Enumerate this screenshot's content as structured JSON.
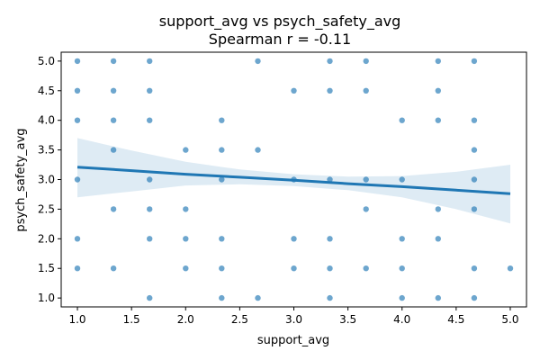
{
  "chart_data": {
    "type": "scatter",
    "title_line1": "support_avg vs psych_safety_avg",
    "title_line2": "Spearman r = -0.11",
    "xlabel": "support_avg",
    "ylabel": "psych_safety_avg",
    "xlim": [
      0.85,
      5.15
    ],
    "ylim": [
      0.85,
      5.15
    ],
    "xticks": [
      "1.0",
      "1.5",
      "2.0",
      "2.5",
      "3.0",
      "3.5",
      "4.0",
      "4.5",
      "5.0"
    ],
    "yticks": [
      "1.0",
      "1.5",
      "2.0",
      "2.5",
      "3.0",
      "3.5",
      "4.0",
      "4.5",
      "5.0"
    ],
    "point_color": "#1f77b4",
    "points": [
      [
        1.0,
        5.0
      ],
      [
        1.0,
        4.5
      ],
      [
        1.0,
        4.0
      ],
      [
        1.0,
        3.0
      ],
      [
        1.0,
        2.0
      ],
      [
        1.0,
        1.5
      ],
      [
        1.333,
        5.0
      ],
      [
        1.333,
        4.5
      ],
      [
        1.333,
        4.0
      ],
      [
        1.333,
        3.5
      ],
      [
        1.333,
        2.5
      ],
      [
        1.333,
        1.5
      ],
      [
        1.667,
        5.0
      ],
      [
        1.667,
        4.5
      ],
      [
        1.667,
        4.0
      ],
      [
        1.667,
        3.0
      ],
      [
        1.667,
        2.5
      ],
      [
        1.667,
        2.0
      ],
      [
        1.667,
        1.0
      ],
      [
        2.0,
        3.5
      ],
      [
        2.0,
        2.5
      ],
      [
        2.0,
        2.0
      ],
      [
        2.0,
        1.5
      ],
      [
        2.333,
        4.0
      ],
      [
        2.333,
        3.5
      ],
      [
        2.333,
        3.0
      ],
      [
        2.333,
        2.0
      ],
      [
        2.333,
        1.5
      ],
      [
        2.333,
        1.0
      ],
      [
        2.667,
        5.0
      ],
      [
        2.667,
        3.5
      ],
      [
        2.667,
        1.0
      ],
      [
        3.0,
        4.5
      ],
      [
        3.0,
        3.0
      ],
      [
        3.0,
        2.0
      ],
      [
        3.0,
        1.5
      ],
      [
        3.333,
        5.0
      ],
      [
        3.333,
        4.5
      ],
      [
        3.333,
        3.0
      ],
      [
        3.333,
        2.0
      ],
      [
        3.333,
        1.5
      ],
      [
        3.333,
        1.0
      ],
      [
        3.667,
        5.0
      ],
      [
        3.667,
        4.5
      ],
      [
        3.667,
        3.0
      ],
      [
        3.667,
        2.5
      ],
      [
        3.667,
        1.5
      ],
      [
        4.0,
        4.0
      ],
      [
        4.0,
        3.0
      ],
      [
        4.0,
        2.0
      ],
      [
        4.0,
        1.5
      ],
      [
        4.0,
        1.0
      ],
      [
        4.333,
        5.0
      ],
      [
        4.333,
        4.5
      ],
      [
        4.333,
        4.0
      ],
      [
        4.333,
        2.5
      ],
      [
        4.333,
        2.0
      ],
      [
        4.333,
        1.0
      ],
      [
        4.667,
        5.0
      ],
      [
        4.667,
        4.0
      ],
      [
        4.667,
        3.5
      ],
      [
        4.667,
        3.0
      ],
      [
        4.667,
        2.5
      ],
      [
        4.667,
        1.5
      ],
      [
        4.667,
        1.0
      ],
      [
        5.0,
        1.5
      ]
    ],
    "regression": {
      "x": [
        1.0,
        1.5,
        2.0,
        2.5,
        3.0,
        3.5,
        4.0,
        4.5,
        5.0
      ],
      "y": [
        3.21,
        3.15,
        3.09,
        3.04,
        2.99,
        2.93,
        2.88,
        2.82,
        2.76
      ],
      "ci_lower": [
        2.7,
        2.8,
        2.9,
        2.92,
        2.89,
        2.82,
        2.7,
        2.5,
        2.26
      ],
      "ci_upper": [
        3.7,
        3.49,
        3.3,
        3.17,
        3.09,
        3.05,
        3.06,
        3.13,
        3.25
      ]
    }
  }
}
